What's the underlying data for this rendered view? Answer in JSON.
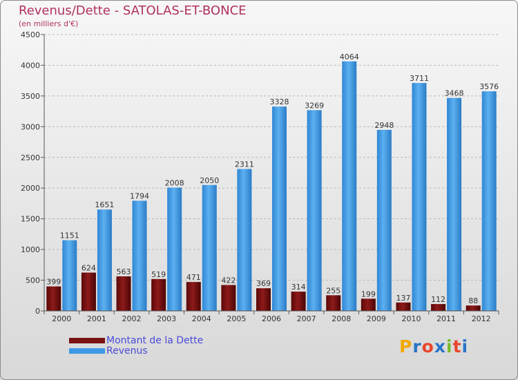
{
  "header": {
    "title": "Revenus/Dette - SATOLAS-ET-BONCE",
    "subtitle": "(en milliers d'€)"
  },
  "logo": {
    "letters": [
      "P",
      "r",
      "o",
      "x",
      "i",
      "t",
      "i"
    ],
    "colors": [
      "#f2a900",
      "#2a74c8",
      "#e8462d",
      "#2a74c8",
      "#7bb92f",
      "#e8462d",
      "#2a74c8"
    ]
  },
  "colors": {
    "debt": "#7a1212",
    "revenue": "#3d9ae6",
    "axis": "#555555",
    "grid": "#b8b8b8"
  },
  "chart_data": {
    "type": "bar",
    "title": "Revenus/Dette - SATOLAS-ET-BONCE",
    "subtitle": "(en milliers d'€)",
    "xlabel": "",
    "ylabel": "",
    "ylim": [
      0,
      4500
    ],
    "yticks": [
      0,
      500,
      1000,
      1500,
      2000,
      2500,
      3000,
      3500,
      4000,
      4500
    ],
    "grid": true,
    "legend_position": "bottom-left",
    "categories": [
      "2000",
      "2001",
      "2002",
      "2003",
      "2004",
      "2005",
      "2006",
      "2007",
      "2008",
      "2009",
      "2010",
      "2011",
      "2012"
    ],
    "series": [
      {
        "name": "Montant de la Dette",
        "color": "#7a1212",
        "values": [
          399,
          624,
          563,
          519,
          471,
          422,
          369,
          314,
          255,
          199,
          137,
          112,
          88
        ]
      },
      {
        "name": "Revenus",
        "color": "#3d9ae6",
        "values": [
          1151,
          1651,
          1794,
          2008,
          2050,
          2311,
          3328,
          3269,
          4064,
          2948,
          3711,
          3468,
          3576
        ]
      }
    ]
  }
}
